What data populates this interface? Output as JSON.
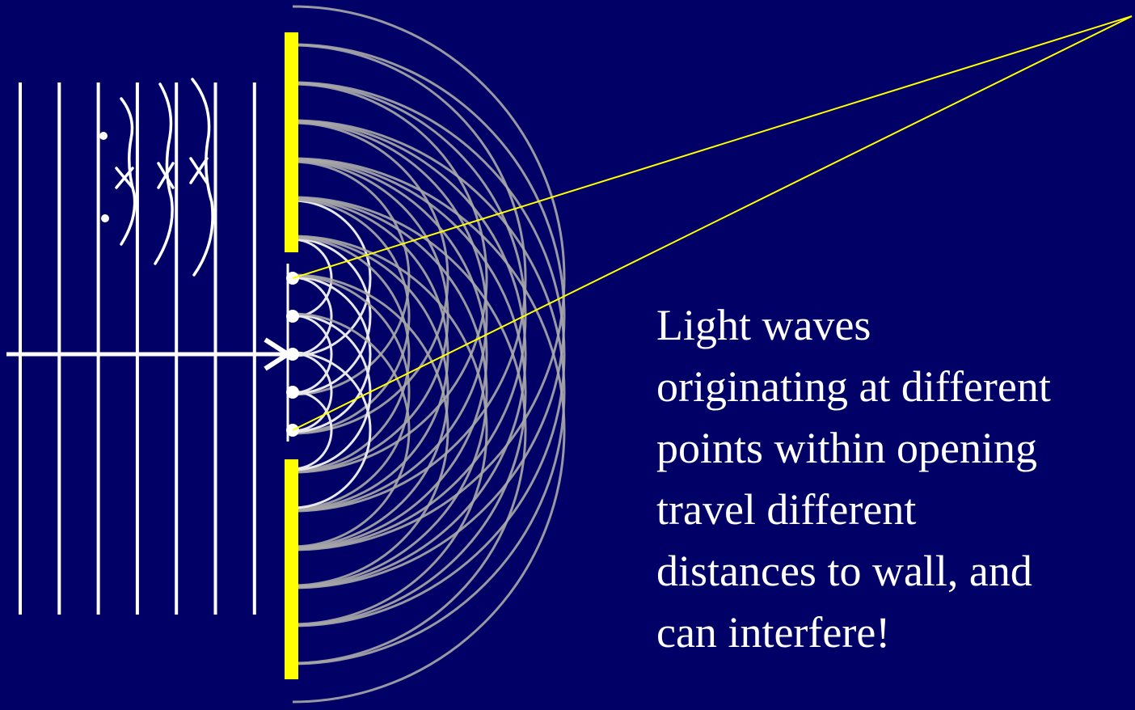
{
  "slide": {
    "caption": "Light waves\noriginating at different\npoints within opening\ntravel different\ndistances to wall, and\ncan interfere!"
  },
  "colors": {
    "background": "#000066",
    "barrier": "#ffff00",
    "ray": "#ffff00",
    "incident_wave": "#ffffff",
    "wavelet_near": "#e8e8e8",
    "wavelet_far": "#aaaaaa",
    "text": "#ffffff"
  },
  "icons": {
    "direction_arrow": "arrow-right-icon",
    "source_point": "dot-icon"
  },
  "diagram": {
    "incident_wavefront_count": 7,
    "source_point_count": 5,
    "wavelet_rings_per_source": 7,
    "wall_convergence_rays": 2
  }
}
